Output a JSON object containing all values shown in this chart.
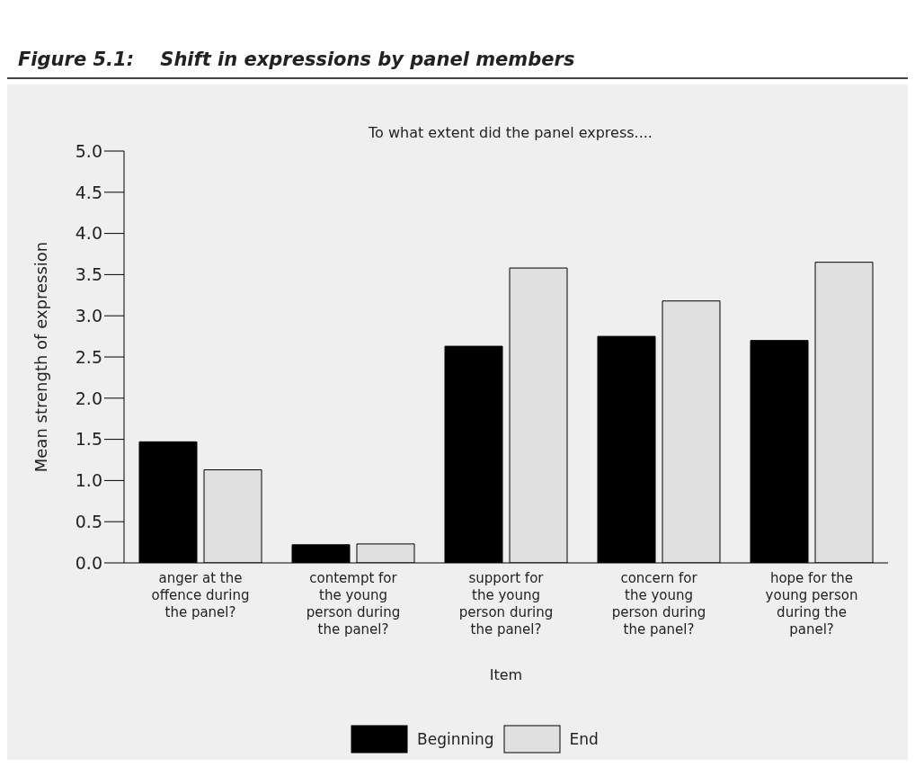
{
  "chart_data": {
    "type": "bar",
    "title": "Figure 5.1:    Shift in expressions by panel members",
    "subtitle": "To what extent did the panel express....",
    "xlabel": "Item",
    "ylabel": "Mean strength of expression",
    "categories": [
      "anger at the offence during the panel?",
      "contempt for the young person during the panel?",
      "support for the young person during the panel?",
      "concern for the young person during the panel?",
      "hope for the young person during the panel?"
    ],
    "series": [
      {
        "name": "Beginning",
        "color": "#000000",
        "values": [
          1.47,
          0.22,
          2.63,
          2.75,
          2.7
        ]
      },
      {
        "name": "End",
        "color": "#e0e0e0",
        "values": [
          1.13,
          0.23,
          3.58,
          3.18,
          3.65
        ]
      }
    ],
    "ylim": [
      0,
      5
    ],
    "yticks": [
      {
        "value": 0,
        "label": "0.0"
      },
      {
        "value": 0.5,
        "label": "0.5"
      },
      {
        "value": 1,
        "label": "1.0"
      },
      {
        "value": 1.5,
        "label": "1.5"
      },
      {
        "value": 2,
        "label": "2.0"
      },
      {
        "value": 2.5,
        "label": "2.5"
      },
      {
        "value": 3,
        "label": "3.0"
      },
      {
        "value": 3.5,
        "label": "3.5"
      },
      {
        "value": 4,
        "label": "4.0"
      },
      {
        "value": 4.5,
        "label": "4.5"
      },
      {
        "value": 5,
        "label": "5.0"
      }
    ],
    "grid": false,
    "legend": "bottom"
  }
}
